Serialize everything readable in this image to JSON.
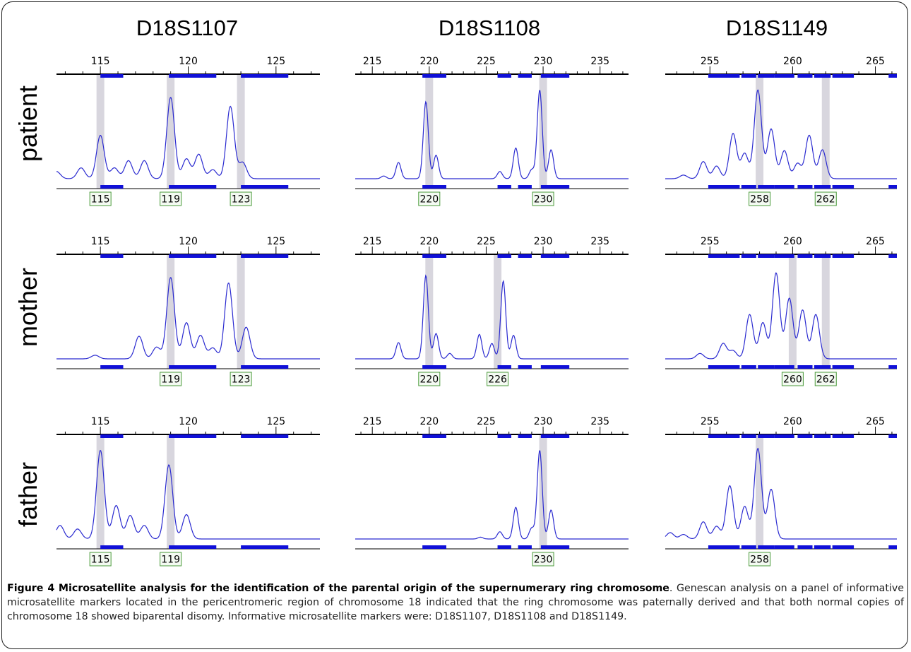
{
  "figure": {
    "caption_label": "Figure 4",
    "caption_title": "Microsatellite analysis for the identification of the parental origin of the supernumerary ring chromosome",
    "caption_text": ". Genescan analysis on a panel of informative microsatellite markers located in the pericentromeric region of chromosome 18 indicated that the ring chromosome was paternally derived and that both normal copies of chromosome 18 showed biparental disomy. Informative microsatellite markers were: D18S1107, D18S1108 and D18S1149."
  },
  "colors": {
    "trace": "#2a2ad0",
    "bin": "#1010d8",
    "highlight": "#d8d6de",
    "axis": "#000000",
    "label_border": "#4a9a3a",
    "label_bg": "#f4faf2"
  },
  "chart_data": {
    "type": "line",
    "rows": [
      "patient",
      "mother",
      "father"
    ],
    "markers": [
      {
        "name": "D18S1107",
        "ticks": [
          115,
          120,
          125
        ],
        "xlim": [
          112.5,
          127.5
        ],
        "bins": [
          [
            115.0,
            116.3
          ],
          [
            118.9,
            121.6
          ],
          [
            123.0,
            125.7
          ]
        ],
        "panels": [
          {
            "row": "patient",
            "alleles": [
              115,
              119,
              123
            ],
            "peaks": [
              [
                112.5,
                0.08
              ],
              [
                113.9,
                0.12
              ],
              [
                115.0,
                0.48
              ],
              [
                115.8,
                0.12
              ],
              [
                116.6,
                0.2
              ],
              [
                117.5,
                0.2
              ],
              [
                119.0,
                0.9
              ],
              [
                119.9,
                0.22
              ],
              [
                120.6,
                0.27
              ],
              [
                121.4,
                0.1
              ],
              [
                122.4,
                0.8
              ],
              [
                123.1,
                0.18
              ]
            ]
          },
          {
            "row": "mother",
            "alleles": [
              119,
              123
            ],
            "peaks": [
              [
                114.7,
                0.04
              ],
              [
                117.2,
                0.25
              ],
              [
                118.2,
                0.13
              ],
              [
                119.0,
                0.9
              ],
              [
                119.9,
                0.4
              ],
              [
                120.7,
                0.26
              ],
              [
                121.4,
                0.12
              ],
              [
                122.3,
                0.84
              ],
              [
                123.3,
                0.35
              ]
            ]
          },
          {
            "row": "father",
            "alleles": [
              115,
              119
            ],
            "peaks": [
              [
                112.7,
                0.15
              ],
              [
                113.7,
                0.11
              ],
              [
                115.0,
                0.98
              ],
              [
                115.9,
                0.37
              ],
              [
                116.7,
                0.26
              ],
              [
                117.5,
                0.15
              ],
              [
                118.9,
                0.82
              ],
              [
                119.9,
                0.27
              ]
            ]
          }
        ]
      },
      {
        "name": "D18S1108",
        "ticks": [
          215,
          220,
          225,
          230,
          235
        ],
        "xlim": [
          213.5,
          237.5
        ],
        "bins": [
          [
            219.4,
            221.5
          ],
          [
            226.0,
            227.2
          ],
          [
            227.8,
            229.0
          ],
          [
            229.8,
            232.3
          ]
        ],
        "panels": [
          {
            "row": "patient",
            "alleles": [
              220,
              230
            ],
            "peaks": [
              [
                216.0,
                0.03
              ],
              [
                217.3,
                0.18
              ],
              [
                219.7,
                0.85
              ],
              [
                220.6,
                0.26
              ],
              [
                226.2,
                0.08
              ],
              [
                227.6,
                0.34
              ],
              [
                229.0,
                0.1
              ],
              [
                229.7,
                0.98
              ],
              [
                230.7,
                0.32
              ]
            ]
          },
          {
            "row": "mother",
            "alleles": [
              220,
              226
            ],
            "peaks": [
              [
                217.3,
                0.18
              ],
              [
                219.7,
                0.92
              ],
              [
                220.6,
                0.28
              ],
              [
                221.8,
                0.06
              ],
              [
                224.4,
                0.27
              ],
              [
                225.5,
                0.17
              ],
              [
                226.5,
                0.86
              ],
              [
                227.4,
                0.26
              ]
            ]
          },
          {
            "row": "father",
            "alleles": [
              230
            ],
            "peaks": [
              [
                224.5,
                0.02
              ],
              [
                226.2,
                0.08
              ],
              [
                227.6,
                0.35
              ],
              [
                229.0,
                0.12
              ],
              [
                229.7,
                0.98
              ],
              [
                230.7,
                0.32
              ]
            ]
          }
        ]
      },
      {
        "name": "D18S1149",
        "ticks": [
          255,
          260,
          265
        ],
        "xlim": [
          252.3,
          266.3
        ],
        "bins": [
          [
            254.9,
            256.8
          ],
          [
            256.9,
            257.8
          ],
          [
            257.9,
            258.9
          ],
          [
            258.9,
            260.1
          ],
          [
            260.3,
            261.2
          ],
          [
            261.3,
            262.3
          ],
          [
            262.4,
            263.7
          ],
          [
            265.8,
            266.3
          ]
        ],
        "panels": [
          {
            "row": "patient",
            "alleles": [
              258,
              262
            ],
            "peaks": [
              [
                253.4,
                0.04
              ],
              [
                254.6,
                0.19
              ],
              [
                255.4,
                0.14
              ],
              [
                256.4,
                0.5
              ],
              [
                257.1,
                0.28
              ],
              [
                257.9,
                0.98
              ],
              [
                258.7,
                0.55
              ],
              [
                259.5,
                0.31
              ],
              [
                260.3,
                0.17
              ],
              [
                261.0,
                0.48
              ],
              [
                261.8,
                0.32
              ]
            ]
          },
          {
            "row": "mother",
            "alleles": [
              260,
              262
            ],
            "peaks": [
              [
                254.4,
                0.06
              ],
              [
                255.8,
                0.17
              ],
              [
                256.4,
                0.09
              ],
              [
                257.4,
                0.49
              ],
              [
                258.2,
                0.4
              ],
              [
                259.0,
                0.95
              ],
              [
                259.8,
                0.67
              ],
              [
                260.6,
                0.54
              ],
              [
                261.4,
                0.49
              ]
            ]
          },
          {
            "row": "father",
            "alleles": [
              258
            ],
            "peaks": [
              [
                252.6,
                0.07
              ],
              [
                253.4,
                0.05
              ],
              [
                254.6,
                0.19
              ],
              [
                255.4,
                0.14
              ],
              [
                256.2,
                0.59
              ],
              [
                257.1,
                0.36
              ],
              [
                257.9,
                1.0
              ],
              [
                258.7,
                0.55
              ]
            ]
          }
        ]
      }
    ]
  }
}
